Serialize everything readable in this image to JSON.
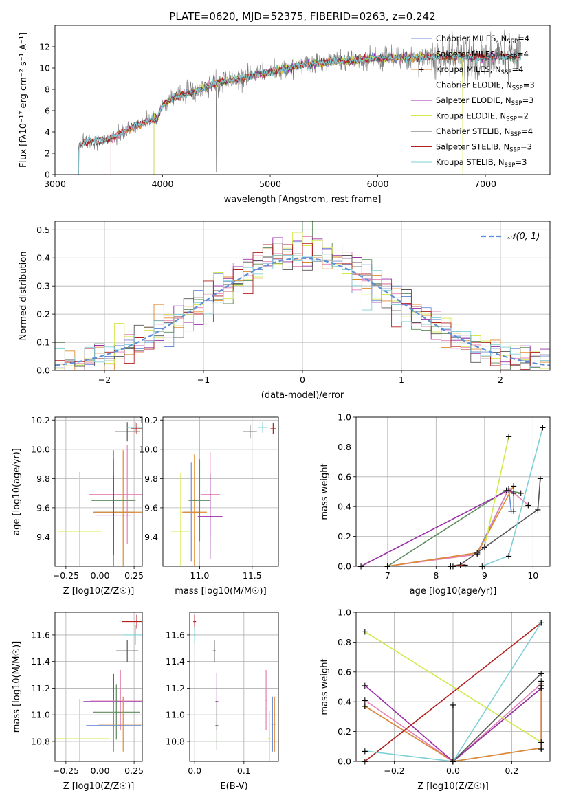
{
  "figure": {
    "title": "PLATE=0620, MJD=52375, FIBERID=0263, z=0.242"
  },
  "chart_data": [
    {
      "id": "spectrum",
      "type": "line",
      "xlabel": "wavelength [Angstrom, rest frame]",
      "ylabel": "Flux [fλ10⁻¹⁷ erg cm⁻² s⁻¹ A⁻¹]",
      "xlim": [
        3000,
        7600
      ],
      "ylim": [
        0,
        14
      ],
      "xticks": [
        3000,
        4000,
        5000,
        6000,
        7000
      ],
      "yticks": [
        0,
        2,
        4,
        6,
        8,
        10,
        12
      ],
      "grid": false,
      "legend_position": "top-right",
      "continuum": {
        "x": [
          3220,
          3300,
          3500,
          3650,
          3800,
          3950,
          4000,
          4100,
          4300,
          4500,
          4800,
          5000,
          5300,
          5600,
          6000,
          6300,
          6600,
          7000,
          7300
        ],
        "y": [
          2.7,
          3.1,
          3.3,
          4.1,
          4.8,
          5.3,
          6.5,
          7.2,
          7.8,
          8.6,
          9.2,
          9.6,
          10.3,
          10.6,
          10.9,
          11.0,
          11.1,
          11.0,
          11.1
        ]
      },
      "series": [
        {
          "name": "Chabrier MILES, N_SSP=4",
          "color": "#6f8fd8",
          "start": 3520
        },
        {
          "name": "Salpeter MILES, N_SSP=4",
          "color": "#e67fb4",
          "start": 3520
        },
        {
          "name": "Kroupa MILES, N_SSP=4",
          "color": "#e08a30",
          "start": 3520
        },
        {
          "name": "Chabrier ELODIE, N_SSP=3",
          "color": "#5d8a5d",
          "start": 3920
        },
        {
          "name": "Salpeter ELODIE, N_SSP=3",
          "color": "#9a2ea8",
          "start": 3920
        },
        {
          "name": "Kroupa ELODIE, N_SSP=2",
          "color": "#d4e84a",
          "start": 3920
        },
        {
          "name": "Chabrier STELIB, N_SSP=4",
          "color": "#555555",
          "start": 3220
        },
        {
          "name": "Salpeter STELIB, N_SSP=3",
          "color": "#b21f1f",
          "start": 3220
        },
        {
          "name": "Kroupa STELIB, N_SSP=3",
          "color": "#7fd0d6",
          "start": 3220
        }
      ],
      "legend_labels": [
        {
          "base": "Chabrier MILES, N",
          "sub": "SSP",
          "tail": "=4"
        },
        {
          "base": "Salpeter MILES, N",
          "sub": "SSP",
          "tail": "=4"
        },
        {
          "base": "Kroupa MILES, N",
          "sub": "SSP",
          "tail": "=4"
        },
        {
          "base": "Chabrier ELODIE, N",
          "sub": "SSP",
          "tail": "=3"
        },
        {
          "base": "Salpeter ELODIE, N",
          "sub": "SSP",
          "tail": "=3"
        },
        {
          "base": "Kroupa ELODIE, N",
          "sub": "SSP",
          "tail": "=2"
        },
        {
          "base": "Chabrier STELIB, N",
          "sub": "SSP",
          "tail": "=4"
        },
        {
          "base": "Salpeter STELIB, N",
          "sub": "SSP",
          "tail": "=3"
        },
        {
          "base": "Kroupa STELIB, N",
          "sub": "SSP",
          "tail": "=3"
        }
      ]
    },
    {
      "id": "residuals",
      "type": "histogram",
      "xlabel": "(data-model)/error",
      "ylabel": "Normed distribution",
      "xlim": [
        -2.5,
        2.5
      ],
      "ylim": [
        0,
        0.53
      ],
      "xticks": [
        -2,
        -1,
        0,
        1,
        2
      ],
      "yticks": [
        0.0,
        0.1,
        0.2,
        0.3,
        0.4,
        0.5
      ],
      "grid": true,
      "legend_position": "top-right",
      "gaussian_label": "𝒩(0, 1)",
      "gaussian_color": "#5b8fd6"
    },
    {
      "id": "age_vs_Z",
      "type": "scatter",
      "xlabel": "Z [log10(Z/Z☉)]",
      "ylabel": "age  [log10(age/yr)]",
      "xlim": [
        -0.33,
        0.31
      ],
      "ylim": [
        9.2,
        10.22
      ],
      "xticks": [
        -0.25,
        0.0,
        0.25
      ],
      "yticks": [
        9.4,
        9.6,
        9.8,
        10.0,
        10.2
      ],
      "grid": true,
      "points": [
        {
          "x": 0.2,
          "y": 10.12,
          "color": "#555555"
        },
        {
          "x": 0.26,
          "y": 10.15,
          "color": "#7fd0d6"
        },
        {
          "x": 0.27,
          "y": 10.14,
          "color": "#b21f1f"
        },
        {
          "x": 0.1,
          "y": 9.57,
          "color": "#6f8fd8"
        },
        {
          "x": 0.2,
          "y": 9.69,
          "color": "#e67fb4"
        },
        {
          "x": 0.17,
          "y": 9.57,
          "color": "#e08a30"
        },
        {
          "x": 0.1,
          "y": 9.65,
          "color": "#5d8a5d"
        },
        {
          "x": 0.1,
          "y": 9.55,
          "color": "#9a2ea8"
        },
        {
          "x": -0.15,
          "y": 9.44,
          "color": "#d4e84a"
        }
      ]
    },
    {
      "id": "age_vs_mass",
      "type": "scatter",
      "xlabel": "mass [log10(M/M☉)]",
      "ylabel": "",
      "xlim": [
        10.65,
        11.75
      ],
      "ylim": [
        9.2,
        10.22
      ],
      "xticks": [
        11.0,
        11.5
      ],
      "yticks": [
        9.4,
        9.6,
        9.8,
        10.0,
        10.2
      ],
      "grid": true,
      "points": [
        {
          "x": 11.48,
          "y": 10.12,
          "color": "#555555"
        },
        {
          "x": 11.6,
          "y": 10.15,
          "color": "#7fd0d6"
        },
        {
          "x": 11.7,
          "y": 10.14,
          "color": "#b21f1f"
        },
        {
          "x": 10.92,
          "y": 9.57,
          "color": "#6f8fd8"
        },
        {
          "x": 11.1,
          "y": 9.69,
          "color": "#e67fb4"
        },
        {
          "x": 10.95,
          "y": 9.57,
          "color": "#e08a30"
        },
        {
          "x": 11.0,
          "y": 9.65,
          "color": "#5d8a5d"
        },
        {
          "x": 11.1,
          "y": 9.54,
          "color": "#9a2ea8"
        },
        {
          "x": 10.82,
          "y": 9.44,
          "color": "#d4e84a"
        }
      ]
    },
    {
      "id": "mw_vs_age",
      "type": "line",
      "xlabel": "age  [log10(age/yr)]",
      "ylabel": "mass weight",
      "xlim": [
        6.35,
        10.35
      ],
      "ylim": [
        0,
        1.0
      ],
      "xticks": [
        7,
        8,
        9,
        10
      ],
      "yticks": [
        0.0,
        0.2,
        0.4,
        0.6,
        0.8,
        1.0
      ],
      "grid": true,
      "series": [
        {
          "name": "Chabrier MILES",
          "color": "#6f8fd8",
          "x": [
            7.0,
            8.85,
            9.5,
            9.55
          ],
          "y": [
            0.0,
            0.09,
            0.52,
            0.37
          ]
        },
        {
          "name": "Salpeter MILES",
          "color": "#e67fb4",
          "x": [
            7.0,
            8.85,
            9.5,
            9.9
          ],
          "y": [
            0.0,
            0.08,
            0.52,
            0.41
          ]
        },
        {
          "name": "Kroupa MILES",
          "color": "#e08a30",
          "x": [
            7.0,
            8.85,
            9.6,
            9.6
          ],
          "y": [
            0.0,
            0.09,
            0.54,
            0.37
          ]
        },
        {
          "name": "Chabrier ELODIE",
          "color": "#5d8a5d",
          "x": [
            7.0,
            9.45,
            9.75
          ],
          "y": [
            0.0,
            0.51,
            0.49
          ]
        },
        {
          "name": "Salpeter ELODIE",
          "color": "#9a2ea8",
          "x": [
            6.45,
            9.5,
            9.6
          ],
          "y": [
            0.0,
            0.51,
            0.49
          ]
        },
        {
          "name": "Kroupa ELODIE",
          "color": "#d4e84a",
          "x": [
            9.0,
            9.5
          ],
          "y": [
            0.13,
            0.87
          ]
        },
        {
          "name": "Chabrier STELIB",
          "color": "#555555",
          "x": [
            8.3,
            8.5,
            10.1,
            10.15
          ],
          "y": [
            0.0,
            0.01,
            0.38,
            0.59
          ]
        },
        {
          "name": "Salpeter STELIB",
          "color": "#b21f1f",
          "x": [
            8.35,
            8.6
          ],
          "y": [
            0.0,
            0.01
          ]
        },
        {
          "name": "Kroupa STELIB",
          "color": "#7fd0d6",
          "x": [
            8.95,
            9.5,
            10.2
          ],
          "y": [
            0.0,
            0.07,
            0.93
          ]
        }
      ]
    },
    {
      "id": "mass_vs_Z",
      "type": "scatter",
      "xlabel": "Z [log10(Z/Z☉)]",
      "ylabel": "mass [log10(M/M☉)]",
      "xlim": [
        -0.33,
        0.31
      ],
      "ylim": [
        10.65,
        11.77
      ],
      "xticks": [
        -0.25,
        0.0,
        0.25
      ],
      "yticks": [
        10.8,
        11.0,
        11.2,
        11.4,
        11.6
      ],
      "grid": true,
      "points": [
        {
          "x": 0.27,
          "y": 11.7,
          "color": "#b21f1f"
        },
        {
          "x": 0.26,
          "y": 11.6,
          "color": "#7fd0d6"
        },
        {
          "x": 0.2,
          "y": 11.48,
          "color": "#555555"
        },
        {
          "x": 0.15,
          "y": 11.11,
          "color": "#e67fb4"
        },
        {
          "x": 0.1,
          "y": 11.1,
          "color": "#9a2ea8"
        },
        {
          "x": 0.12,
          "y": 11.02,
          "color": "#5d8a5d"
        },
        {
          "x": 0.1,
          "y": 10.92,
          "color": "#6f8fd8"
        },
        {
          "x": 0.17,
          "y": 10.93,
          "color": "#e08a30"
        },
        {
          "x": -0.15,
          "y": 10.82,
          "color": "#d4e84a"
        }
      ]
    },
    {
      "id": "mass_vs_ebv",
      "type": "scatter",
      "xlabel": "E(B-V)",
      "ylabel": "",
      "xlim": [
        -0.01,
        0.17
      ],
      "ylim": [
        10.65,
        11.77
      ],
      "xticks": [
        0.0,
        0.1
      ],
      "yticks": [
        10.8,
        11.0,
        11.2,
        11.4,
        11.6
      ],
      "grid": true,
      "points": [
        {
          "x": 0.0,
          "y": 11.7,
          "color": "#b21f1f"
        },
        {
          "x": 0.0,
          "y": 11.6,
          "color": "#7fd0d6"
        },
        {
          "x": 0.04,
          "y": 11.48,
          "color": "#555555"
        },
        {
          "x": 0.045,
          "y": 11.1,
          "color": "#9a2ea8"
        },
        {
          "x": 0.045,
          "y": 10.92,
          "color": "#5d8a5d"
        },
        {
          "x": 0.145,
          "y": 11.11,
          "color": "#e67fb4"
        },
        {
          "x": 0.152,
          "y": 10.82,
          "color": "#d4e84a"
        },
        {
          "x": 0.158,
          "y": 10.93,
          "color": "#6f8fd8"
        },
        {
          "x": 0.162,
          "y": 10.93,
          "color": "#e08a30"
        }
      ]
    },
    {
      "id": "mw_vs_Z",
      "type": "line",
      "xlabel": "Z [log10(Z/Z☉)]",
      "ylabel": "mass weight",
      "xlim": [
        -0.33,
        0.33
      ],
      "ylim": [
        0,
        1.0
      ],
      "xticks": [
        -0.2,
        0.0,
        0.2
      ],
      "yticks": [
        0.0,
        0.2,
        0.4,
        0.6,
        0.8,
        1.0
      ],
      "grid": true,
      "series": [
        {
          "name": "Chabrier MILES",
          "color": "#6f8fd8",
          "x": [
            -0.3,
            0.0,
            0.3,
            0.3
          ],
          "y": [
            0.37,
            0.0,
            0.09,
            0.52
          ]
        },
        {
          "name": "Salpeter MILES",
          "color": "#e67fb4",
          "x": [
            -0.3,
            0.0,
            0.3,
            0.3
          ],
          "y": [
            0.41,
            0.0,
            0.52,
            0.08
          ]
        },
        {
          "name": "Kroupa MILES",
          "color": "#e08a30",
          "x": [
            -0.3,
            0.0,
            0.3,
            0.3
          ],
          "y": [
            0.37,
            0.0,
            0.09,
            0.54
          ]
        },
        {
          "name": "Chabrier ELODIE",
          "color": "#5d8a5d",
          "x": [
            0.0,
            0.3,
            0.3
          ],
          "y": [
            0.0,
            0.49,
            0.51
          ]
        },
        {
          "name": "Salpeter ELODIE",
          "color": "#9a2ea8",
          "x": [
            -0.3,
            0.0,
            0.3
          ],
          "y": [
            0.51,
            0.0,
            0.49
          ]
        },
        {
          "name": "Kroupa ELODIE",
          "color": "#d4e84a",
          "x": [
            -0.3,
            0.3
          ],
          "y": [
            0.87,
            0.13
          ]
        },
        {
          "name": "Chabrier STELIB",
          "color": "#555555",
          "x": [
            0.0,
            0.0,
            0.3
          ],
          "y": [
            0.38,
            0.0,
            0.59
          ]
        },
        {
          "name": "Salpeter STELIB",
          "color": "#b21f1f",
          "x": [
            -0.3,
            0.3
          ],
          "y": [
            0.0,
            0.93
          ]
        },
        {
          "name": "Kroupa STELIB",
          "color": "#7fd0d6",
          "x": [
            -0.3,
            0.0,
            0.3
          ],
          "y": [
            0.07,
            0.0,
            0.93
          ]
        }
      ]
    }
  ]
}
